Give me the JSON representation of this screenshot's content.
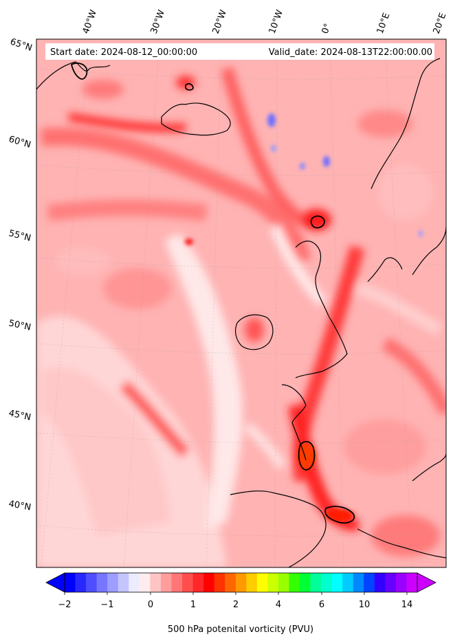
{
  "header": {
    "start_date": "Start date: 2024-08-12_00:00:00",
    "valid_date": "Valid_date: 2024-08-13T22:00:00.00"
  },
  "longitude_labels": [
    "40°W",
    "30°W",
    "20°W",
    "10°W",
    "0°",
    "10°E",
    "20°E"
  ],
  "latitude_labels": [
    "65°N",
    "60°N",
    "55°N",
    "50°N",
    "45°N",
    "40°N"
  ],
  "colorbar": {
    "title": "500 hPa potenital vorticity (PVU)",
    "tick_labels": [
      "−2",
      "−1",
      "0",
      "1",
      "2",
      "4",
      "6",
      "10",
      "14"
    ],
    "colors": [
      "#0000ff",
      "#2727ff",
      "#4e4eff",
      "#7676ff",
      "#9d9dff",
      "#c4c4ff",
      "#ececff",
      "#ffecec",
      "#ffc4c4",
      "#ff9d9d",
      "#ff7676",
      "#ff4e4e",
      "#ff2727",
      "#ff0000",
      "#ff3300",
      "#ff6600",
      "#ff9900",
      "#ffcc00",
      "#ffff00",
      "#ccff00",
      "#99ff00",
      "#33ff00",
      "#00ff33",
      "#00ff99",
      "#00ffcc",
      "#00ffff",
      "#00ccff",
      "#0088ff",
      "#0044ff",
      "#3300ff",
      "#6600ff",
      "#9900ff",
      "#cc00ff"
    ],
    "under_color": "#0000ff",
    "over_color": "#cc00ff"
  },
  "map": {
    "background_color": "#ffb0b0",
    "coastline_color": "#000000"
  }
}
